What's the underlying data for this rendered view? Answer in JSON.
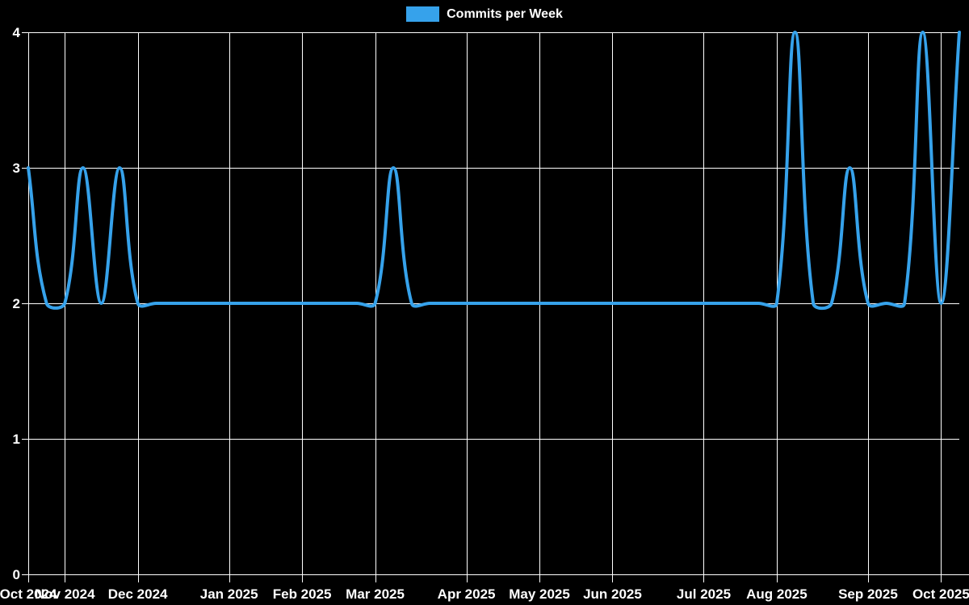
{
  "chart_data": {
    "type": "line",
    "title": "",
    "legend": [
      {
        "label": "Commits per Week",
        "color": "#36a2eb"
      }
    ],
    "legend_position": "top-center",
    "x_unit": "week",
    "x_count": 52,
    "series": [
      {
        "name": "Commits per Week",
        "color": "#36a2eb",
        "values": [
          3,
          2,
          2,
          3,
          2,
          3,
          2,
          2,
          2,
          2,
          2,
          2,
          2,
          2,
          2,
          2,
          2,
          2,
          2,
          2,
          3,
          2,
          2,
          2,
          2,
          2,
          2,
          2,
          2,
          2,
          2,
          2,
          2,
          2,
          2,
          2,
          2,
          2,
          2,
          2,
          2,
          2,
          4,
          2,
          2,
          3,
          2,
          2,
          2,
          4,
          2,
          4
        ]
      }
    ],
    "x_ticks": [
      {
        "label": "Oct 2024",
        "week_index": 0
      },
      {
        "label": "Nov 2024",
        "week_index": 2
      },
      {
        "label": "Dec 2024",
        "week_index": 6
      },
      {
        "label": "Jan 2025",
        "week_index": 11
      },
      {
        "label": "Feb 2025",
        "week_index": 15
      },
      {
        "label": "Mar 2025",
        "week_index": 19
      },
      {
        "label": "Apr 2025",
        "week_index": 24
      },
      {
        "label": "May 2025",
        "week_index": 28
      },
      {
        "label": "Jun 2025",
        "week_index": 32
      },
      {
        "label": "Jul 2025",
        "week_index": 37
      },
      {
        "label": "Aug 2025",
        "week_index": 41
      },
      {
        "label": "Sep 2025",
        "week_index": 46
      },
      {
        "label": "Oct 2025",
        "week_index": 50
      }
    ],
    "y_ticks": [
      "0",
      "1",
      "2",
      "3",
      "4"
    ],
    "ylim": [
      0,
      4
    ],
    "grid": true,
    "line_tension": 0.4,
    "colors": {
      "background": "#000000",
      "grid": "#ffffff",
      "text": "#ffffff",
      "line": "#36a2eb"
    }
  }
}
